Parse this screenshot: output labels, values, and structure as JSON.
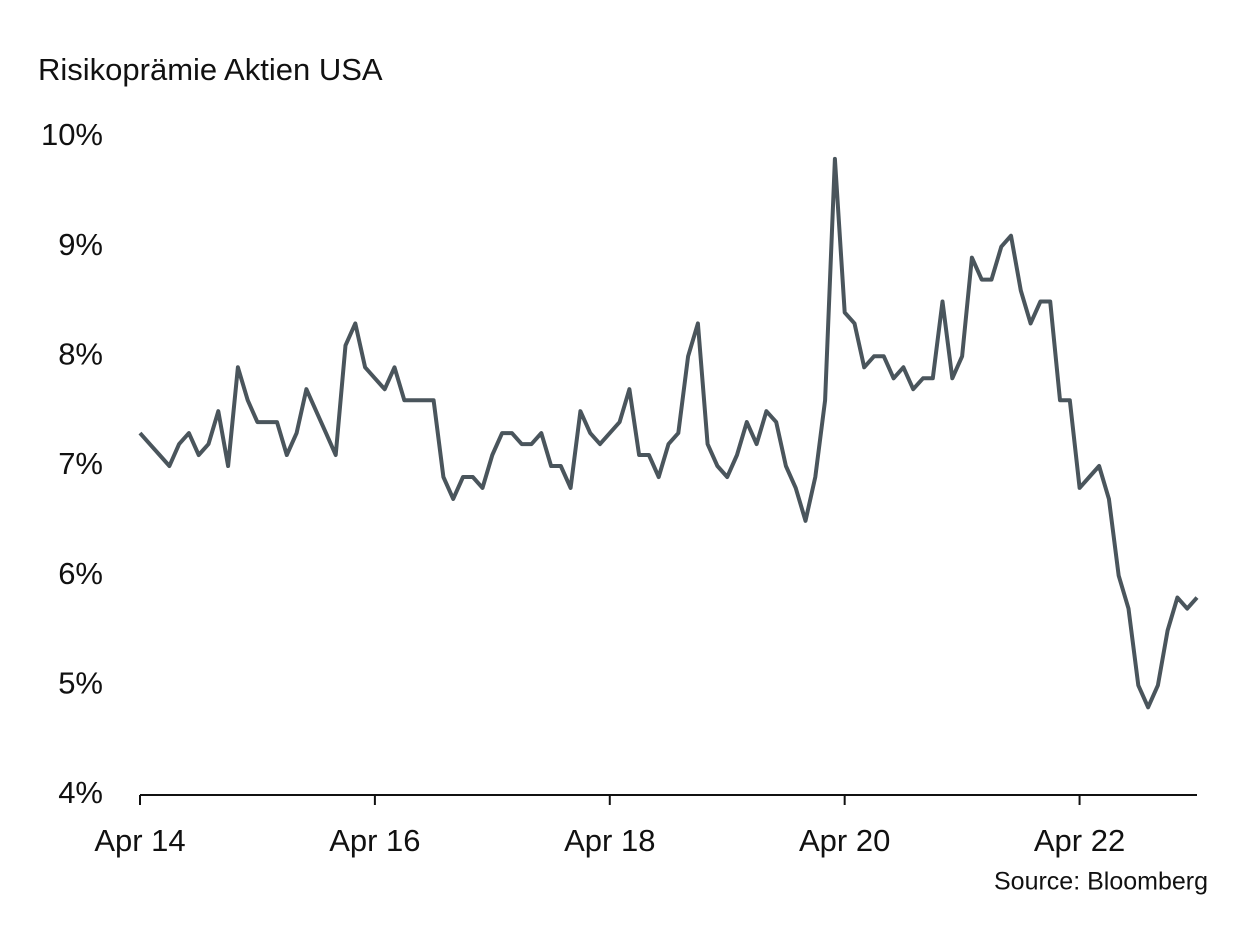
{
  "chart_data": {
    "type": "line",
    "title": "Risikoprämie Aktien USA",
    "source": "Source: Bloomberg",
    "x": [
      "2014-04",
      "2014-05",
      "2014-06",
      "2014-07",
      "2014-08",
      "2014-09",
      "2014-10",
      "2014-11",
      "2014-12",
      "2015-01",
      "2015-02",
      "2015-03",
      "2015-04",
      "2015-05",
      "2015-06",
      "2015-07",
      "2015-08",
      "2015-09",
      "2015-10",
      "2015-11",
      "2015-12",
      "2016-01",
      "2016-02",
      "2016-03",
      "2016-04",
      "2016-05",
      "2016-06",
      "2016-07",
      "2016-08",
      "2016-09",
      "2016-10",
      "2016-11",
      "2016-12",
      "2017-01",
      "2017-02",
      "2017-03",
      "2017-04",
      "2017-05",
      "2017-06",
      "2017-07",
      "2017-08",
      "2017-09",
      "2017-10",
      "2017-11",
      "2017-12",
      "2018-01",
      "2018-02",
      "2018-03",
      "2018-04",
      "2018-05",
      "2018-06",
      "2018-07",
      "2018-08",
      "2018-09",
      "2018-10",
      "2018-11",
      "2018-12",
      "2019-01",
      "2019-02",
      "2019-03",
      "2019-04",
      "2019-05",
      "2019-06",
      "2019-07",
      "2019-08",
      "2019-09",
      "2019-10",
      "2019-11",
      "2019-12",
      "2020-01",
      "2020-02",
      "2020-03",
      "2020-04",
      "2020-05",
      "2020-06",
      "2020-07",
      "2020-08",
      "2020-09",
      "2020-10",
      "2020-11",
      "2020-12",
      "2021-01",
      "2021-02",
      "2021-03",
      "2021-04",
      "2021-05",
      "2021-06",
      "2021-07",
      "2021-08",
      "2021-09",
      "2021-10",
      "2021-11",
      "2021-12",
      "2022-01",
      "2022-02",
      "2022-03",
      "2022-04",
      "2022-05",
      "2022-06",
      "2022-07",
      "2022-08",
      "2022-09",
      "2022-10",
      "2022-11",
      "2022-12",
      "2023-01",
      "2023-02",
      "2023-03",
      "2023-04"
    ],
    "series": [
      {
        "name": "Risikoprämie",
        "color": "#4a555c",
        "values": [
          7.3,
          7.2,
          7.1,
          7.0,
          7.2,
          7.3,
          7.1,
          7.2,
          7.5,
          7.0,
          7.9,
          7.6,
          7.4,
          7.4,
          7.4,
          7.1,
          7.3,
          7.7,
          7.5,
          7.3,
          7.1,
          8.1,
          8.3,
          7.9,
          7.8,
          7.7,
          7.9,
          7.6,
          7.6,
          7.6,
          7.6,
          6.9,
          6.7,
          6.9,
          6.9,
          6.8,
          7.1,
          7.3,
          7.3,
          7.2,
          7.2,
          7.3,
          7.0,
          7.0,
          6.8,
          7.5,
          7.3,
          7.2,
          7.3,
          7.4,
          7.7,
          7.1,
          7.1,
          6.9,
          7.2,
          7.3,
          8.0,
          8.3,
          7.2,
          7.0,
          6.9,
          7.1,
          7.4,
          7.2,
          7.5,
          7.4,
          7.0,
          6.8,
          6.5,
          6.9,
          7.6,
          9.8,
          8.4,
          8.3,
          7.9,
          8.0,
          8.0,
          7.8,
          7.9,
          7.7,
          7.8,
          7.8,
          8.5,
          7.8,
          8.0,
          8.9,
          8.7,
          8.7,
          9.0,
          9.1,
          8.6,
          8.3,
          8.5,
          8.5,
          7.6,
          7.6,
          6.8,
          6.9,
          7.0,
          6.7,
          6.0,
          5.7,
          5.0,
          4.8,
          5.0,
          5.5,
          5.8,
          5.7,
          5.8
        ]
      }
    ],
    "xlim": [
      "2014-04",
      "2023-04"
    ],
    "xticks": [
      {
        "value": "2014-04",
        "label": "Apr 14"
      },
      {
        "value": "2016-04",
        "label": "Apr 16"
      },
      {
        "value": "2018-04",
        "label": "Apr 18"
      },
      {
        "value": "2020-04",
        "label": "Apr 20"
      },
      {
        "value": "2022-04",
        "label": "Apr 22"
      }
    ],
    "ylim": [
      4,
      10
    ],
    "yticks": [
      {
        "value": 4,
        "label": "4%"
      },
      {
        "value": 5,
        "label": "5%"
      },
      {
        "value": 6,
        "label": "6%"
      },
      {
        "value": 7,
        "label": "7%"
      },
      {
        "value": 8,
        "label": "8%"
      },
      {
        "value": 9,
        "label": "9%"
      },
      {
        "value": 10,
        "label": "10%"
      }
    ],
    "grid": false
  }
}
